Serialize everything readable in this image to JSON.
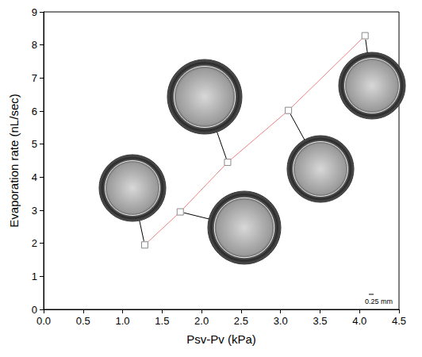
{
  "chart_data": {
    "type": "line",
    "x_label": "Psv-Pv (kPa)",
    "y_label": "Evaporation rate (nL/sec)",
    "series": [
      {
        "color": "#f08080",
        "marker": "square",
        "values": [
          1.95,
          2.95,
          4.45,
          6.02,
          8.28
        ]
      }
    ],
    "x": [
      1.28,
      1.73,
      2.33,
      3.1,
      4.07
    ],
    "xlim": [
      0,
      4.5
    ],
    "xticks": [
      {
        "value": 0,
        "label": "0.0"
      },
      {
        "value": 0.5,
        "label": "0.5"
      },
      {
        "value": 1,
        "label": "1.0"
      },
      {
        "value": 1.5,
        "label": "1.5"
      },
      {
        "value": 2,
        "label": "2.0"
      },
      {
        "value": 2.5,
        "label": "2.5"
      },
      {
        "value": 3,
        "label": "3.0"
      },
      {
        "value": 3.5,
        "label": "3.5"
      },
      {
        "value": 4,
        "label": "4.0"
      },
      {
        "value": 4.5,
        "label": "4.5"
      }
    ],
    "ylim": [
      0,
      9
    ],
    "yticks": [
      0,
      1,
      2,
      3,
      4,
      5,
      6,
      7,
      8,
      9
    ],
    "annotations": [
      "0.25 mm"
    ],
    "grid": false
  }
}
